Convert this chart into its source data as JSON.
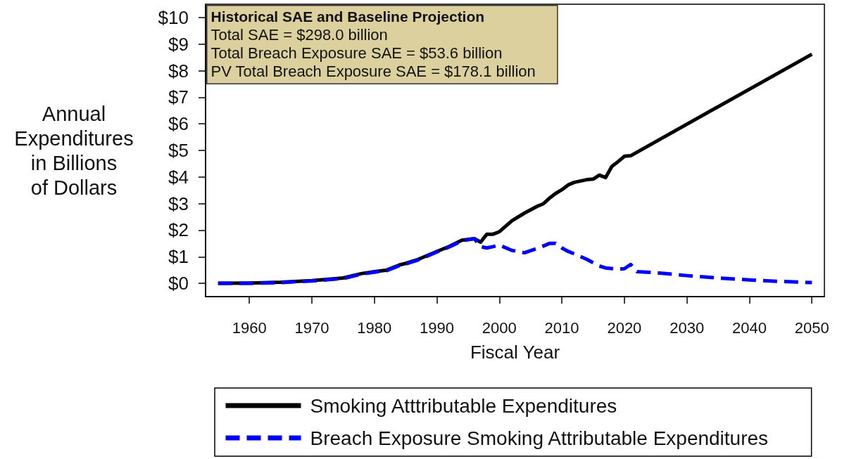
{
  "chart_data": {
    "type": "line",
    "title": "Historical SAE and Baseline Projection",
    "annotations": [
      "Total SAE = $298.0 billion",
      "Total Breach Exposure SAE = $53.6 billion",
      "PV Total Breach Exposure SAE = $178.1 billion"
    ],
    "xlabel": "Fiscal Year",
    "ylabel": "Annual\nExpenditures\nin Billions\nof Dollars",
    "xlim": [
      1953,
      2052
    ],
    "xticks": [
      1960,
      1970,
      1980,
      1990,
      2000,
      2010,
      2020,
      2030,
      2040,
      2050
    ],
    "ylim": [
      -0.5,
      10.5
    ],
    "yticks": [
      {
        "value": 0,
        "label": "$0"
      },
      {
        "value": 1,
        "label": "$1"
      },
      {
        "value": 2,
        "label": "$2"
      },
      {
        "value": 3,
        "label": "$3"
      },
      {
        "value": 4,
        "label": "$4"
      },
      {
        "value": 5,
        "label": "$5"
      },
      {
        "value": 6,
        "label": "$6"
      },
      {
        "value": 7,
        "label": "$7"
      },
      {
        "value": 8,
        "label": "$8"
      },
      {
        "value": 9,
        "label": "$9"
      },
      {
        "value": 10,
        "label": "$10"
      }
    ],
    "grid": false,
    "legend": "bottom",
    "marker": "none",
    "series": [
      {
        "name": "Smoking Atttributable Expenditures",
        "color": "#000000",
        "line_style": "solid",
        "x": [
          1955,
          1960,
          1965,
          1970,
          1975,
          1978,
          1980,
          1982,
          1984,
          1985,
          1987,
          1990,
          1992,
          1994,
          1996,
          1997,
          1998,
          1999,
          2000,
          2002,
          2004,
          2006,
          2007,
          2008,
          2009,
          2010,
          2011,
          2012,
          2014,
          2015,
          2016,
          2017,
          2018,
          2019,
          2020,
          2021,
          2050
        ],
        "values": [
          0.0,
          0.01,
          0.04,
          0.1,
          0.2,
          0.37,
          0.44,
          0.5,
          0.69,
          0.75,
          0.9,
          1.2,
          1.39,
          1.62,
          1.68,
          1.55,
          1.85,
          1.85,
          1.94,
          2.35,
          2.64,
          2.89,
          2.99,
          3.2,
          3.38,
          3.52,
          3.7,
          3.8,
          3.9,
          3.92,
          4.07,
          3.98,
          4.4,
          4.58,
          4.78,
          4.8,
          8.62
        ]
      },
      {
        "name": "Breach Exposure Smoking Attributable Expenditures",
        "color": "#0000ff",
        "line_style": "dashed",
        "x": [
          1955,
          1960,
          1965,
          1970,
          1975,
          1978,
          1980,
          1982,
          1984,
          1985,
          1987,
          1990,
          1992,
          1994,
          1996,
          1997,
          1998,
          1999,
          2000,
          2002,
          2004,
          2006,
          2007,
          2008,
          2009,
          2010,
          2011,
          2012,
          2014,
          2016,
          2017,
          2019,
          2020,
          2021,
          2022,
          2025,
          2030,
          2035,
          2040,
          2045,
          2050
        ],
        "values": [
          0.0,
          0.0,
          0.03,
          0.09,
          0.18,
          0.35,
          0.42,
          0.48,
          0.67,
          0.73,
          0.88,
          1.18,
          1.37,
          1.6,
          1.68,
          1.38,
          1.33,
          1.38,
          1.44,
          1.24,
          1.15,
          1.31,
          1.4,
          1.5,
          1.5,
          1.33,
          1.2,
          1.11,
          0.9,
          0.65,
          0.58,
          0.53,
          0.55,
          0.71,
          0.44,
          0.4,
          0.29,
          0.2,
          0.13,
          0.07,
          0.03
        ]
      }
    ]
  }
}
